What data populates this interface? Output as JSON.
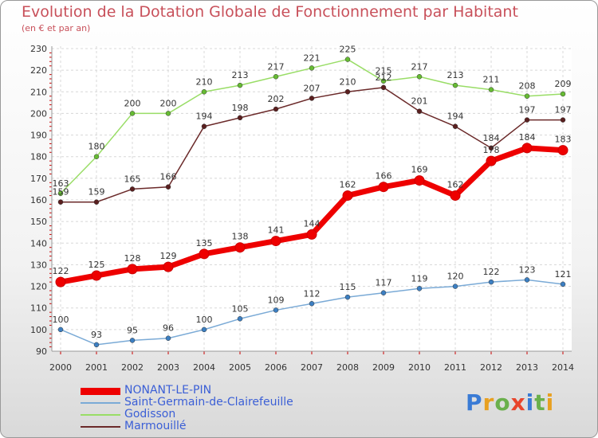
{
  "header": {
    "title": "Evolution de la Dotation Globale de Fonctionnement par Habitant",
    "subtitle": "(en € et par an)"
  },
  "brand": {
    "text": "Proxiti",
    "colors": [
      "#3a7bd5",
      "#e8a020",
      "#6ab04c",
      "#e8452c",
      "#3a7bd5",
      "#6ab04c",
      "#e8a020"
    ]
  },
  "chart_data": {
    "type": "line",
    "x": [
      "2000",
      "2001",
      "2002",
      "2003",
      "2004",
      "2005",
      "2006",
      "2007",
      "2008",
      "2009",
      "2010",
      "2011",
      "2012",
      "2013",
      "2014"
    ],
    "ylim": [
      90,
      230
    ],
    "yticks": [
      90,
      100,
      110,
      120,
      130,
      140,
      150,
      160,
      170,
      180,
      190,
      200,
      210,
      220,
      230
    ],
    "grid": true,
    "legend_position": "bottom-left",
    "series": [
      {
        "name": "Godisson",
        "color": "#99dd66",
        "marker": "#66bb33",
        "width": 1.5,
        "values": [
          163,
          180,
          200,
          200,
          210,
          213,
          217,
          221,
          225,
          215,
          217,
          213,
          211,
          208,
          209
        ]
      },
      {
        "name": "Marmouillé",
        "color": "#6b2a2a",
        "marker": "#5a1f1f",
        "width": 1.5,
        "values": [
          159,
          159,
          165,
          166,
          194,
          198,
          202,
          207,
          210,
          212,
          201,
          194,
          184,
          197,
          197
        ]
      },
      {
        "name": "Saint-Germain-de-Clairefeuille",
        "color": "#7aaad6",
        "marker": "#3c7fc2",
        "width": 1.5,
        "values": [
          100,
          93,
          95,
          96,
          100,
          105,
          109,
          112,
          115,
          117,
          119,
          120,
          122,
          123,
          121
        ]
      },
      {
        "name": "NONANT-LE-PIN",
        "color": "#ee0000",
        "marker": "#ee0000",
        "width": 7,
        "values": [
          122,
          125,
          128,
          129,
          135,
          138,
          141,
          144,
          162,
          166,
          169,
          162,
          178,
          184,
          183
        ]
      }
    ],
    "legend_order": [
      "NONANT-LE-PIN",
      "Saint-Germain-de-Clairefeuille",
      "Godisson",
      "Marmouillé"
    ]
  }
}
